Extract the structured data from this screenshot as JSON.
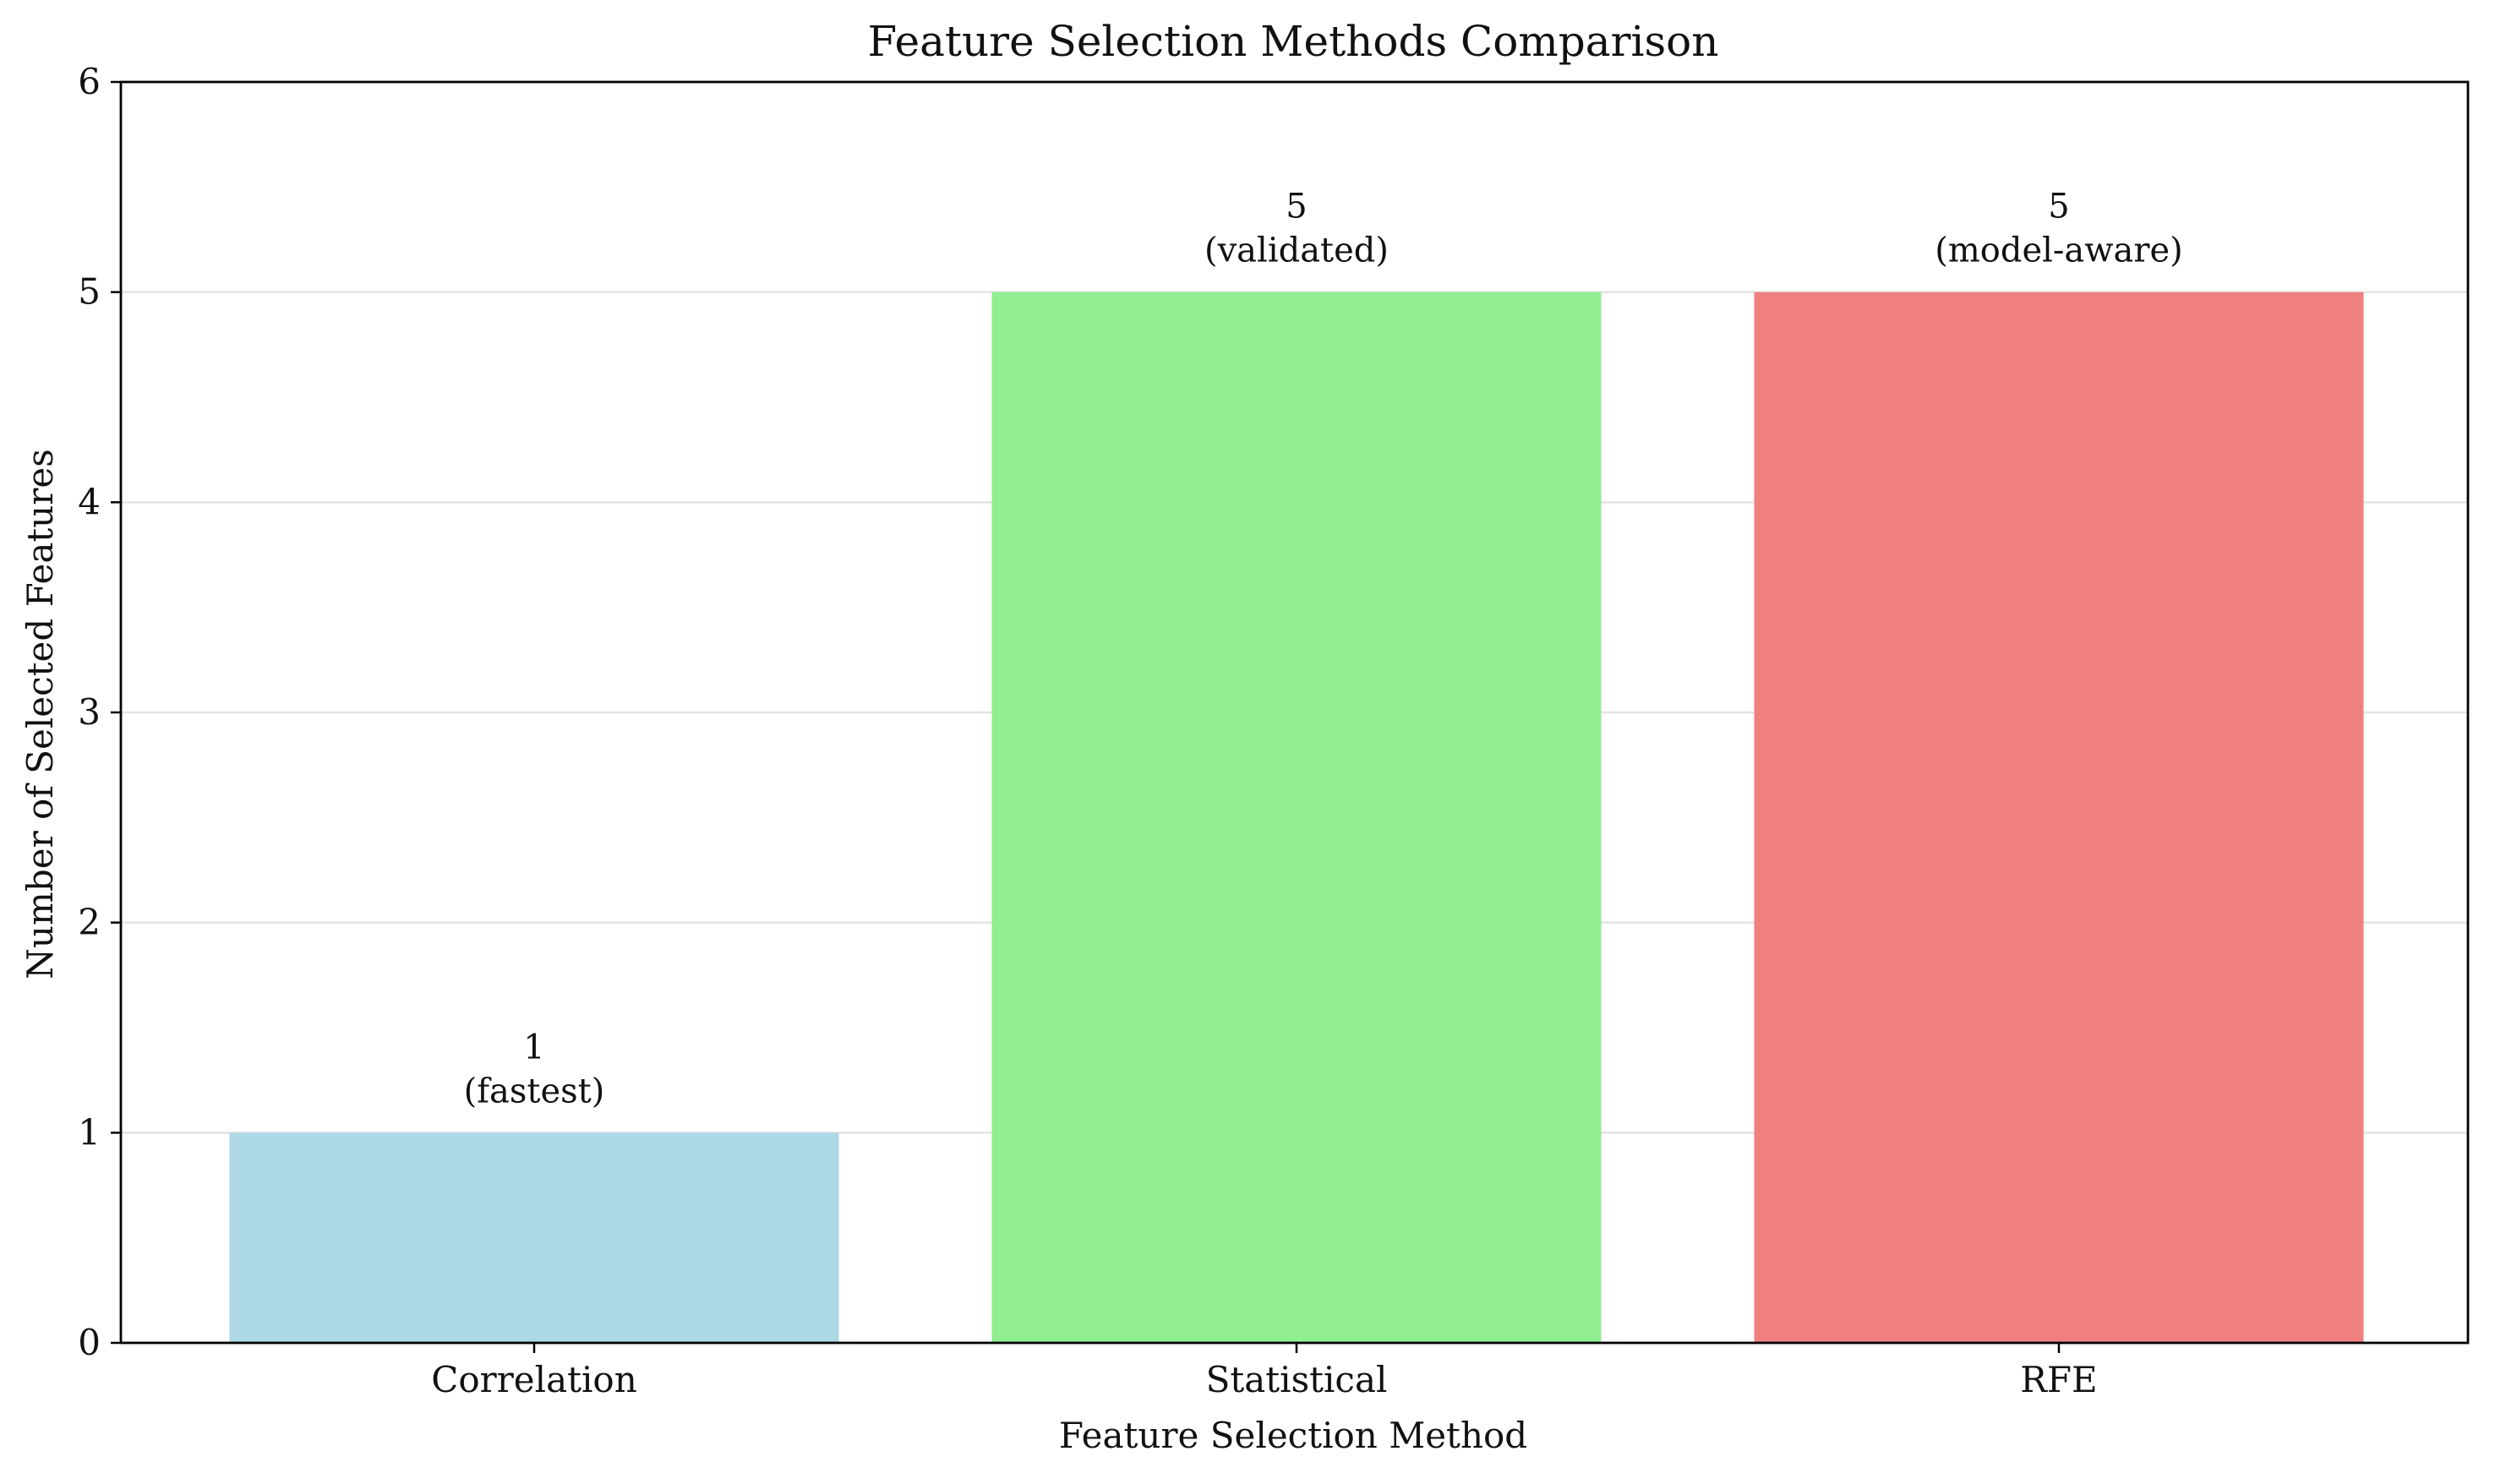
{
  "chart_data": {
    "type": "bar",
    "title": "Feature Selection Methods Comparison",
    "xlabel": "Feature Selection Method",
    "ylabel": "Number of Selected Features",
    "categories": [
      "Correlation",
      "Statistical",
      "RFE"
    ],
    "values": [
      1,
      5,
      5
    ],
    "annotations": [
      "(fastest)",
      "(validated)",
      "(model-aware)"
    ],
    "colors": [
      "#add8e6",
      "#90ee90",
      "#f08080"
    ],
    "ylim": [
      0,
      6
    ],
    "yticks": [
      0,
      1,
      2,
      3,
      4,
      5,
      6
    ],
    "grid": "y",
    "legend": "none"
  }
}
